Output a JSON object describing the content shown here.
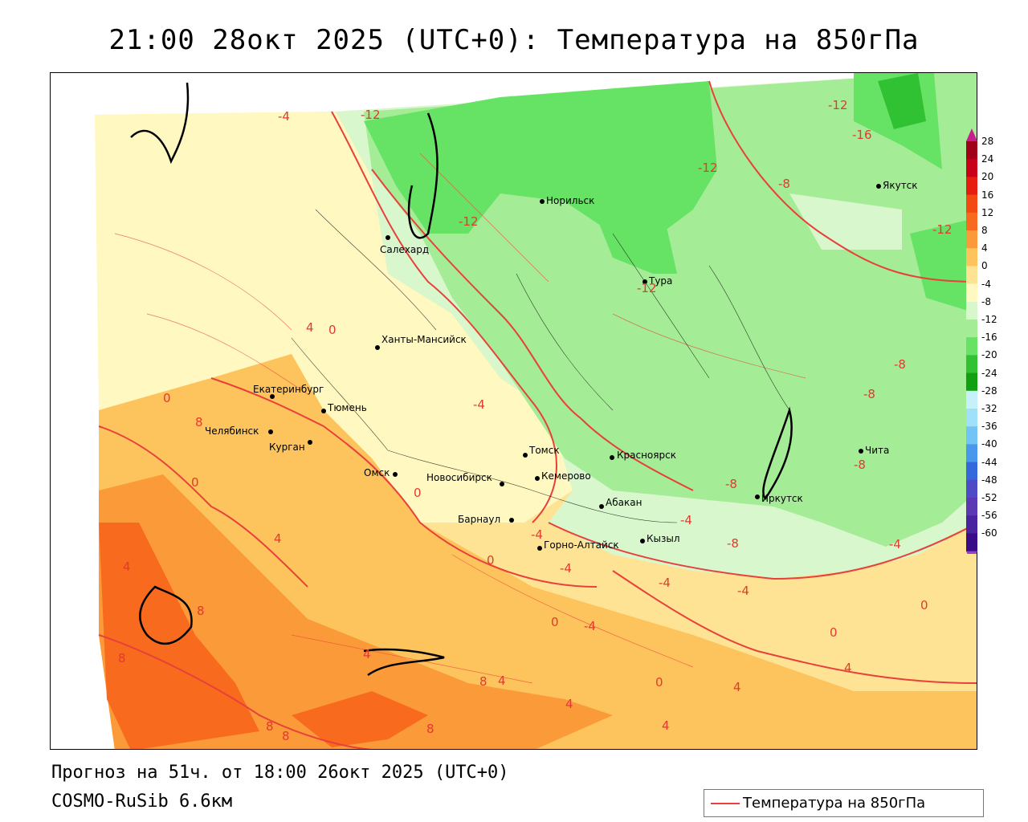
{
  "title": "21:00 28окт 2025 (UTC+0): Температура на 850гПа",
  "footer": {
    "forecast_line": "Прогноз на 51ч. от 18:00 26окт 2025 (UTC+0)",
    "model_line": "COSMO-RuSib 6.6км"
  },
  "legend": {
    "line_label": "Температура на 850гПа",
    "line_color": "#e8403a"
  },
  "colorbar": {
    "levels": [
      "28",
      "24",
      "20",
      "16",
      "12",
      "8",
      "4",
      "0",
      "-4",
      "-8",
      "-12",
      "-16",
      "-20",
      "-24",
      "-28",
      "-32",
      "-36",
      "-40",
      "-44",
      "-48",
      "-52",
      "-56",
      "-60"
    ],
    "colors": [
      "#a00018",
      "#c80018",
      "#e61e10",
      "#f24a10",
      "#f86a1e",
      "#fb9a38",
      "#fdc35c",
      "#ffe394",
      "#fff8c0",
      "#d8f7cc",
      "#a4ec96",
      "#66e264",
      "#30c232",
      "#10a012",
      "#c6f0fa",
      "#a0e0f8",
      "#72c4f4",
      "#4a98ec",
      "#3468dc",
      "#4e4ac8",
      "#5c38b4",
      "#4a24a0",
      "#380c88"
    ],
    "top_arrow_color": "#c8208a",
    "bottom_arrow_color": "#9a40c8"
  },
  "cities": [
    {
      "name": "Норильск"
    },
    {
      "name": "Якутск"
    },
    {
      "name": "Салехард"
    },
    {
      "name": "Тура"
    },
    {
      "name": "Ханты-Мансийск"
    },
    {
      "name": "Екатеринбург"
    },
    {
      "name": "Тюмень"
    },
    {
      "name": "Челябинск"
    },
    {
      "name": "Курган"
    },
    {
      "name": "Омск"
    },
    {
      "name": "Новосибирск"
    },
    {
      "name": "Томск"
    },
    {
      "name": "Кемерово"
    },
    {
      "name": "Красноярск"
    },
    {
      "name": "Барнаул"
    },
    {
      "name": "Абакан"
    },
    {
      "name": "Иркутск"
    },
    {
      "name": "Чита"
    },
    {
      "name": "Кызыл"
    },
    {
      "name": "Горно-Алтайск"
    }
  ],
  "isotherm_labels": [
    "-4",
    "-12",
    "-12",
    "-16",
    "-12",
    "-8",
    "-12",
    "-12",
    "-12",
    "0",
    "-4",
    "-8",
    "-8",
    "-8",
    "0",
    "0",
    "0",
    "-4",
    "0",
    "-4",
    "-4",
    "-4",
    "-4",
    "-8",
    "-4",
    "-8",
    "-4",
    "0",
    "0",
    "0",
    "4",
    "4",
    "4",
    "4",
    "4",
    "4",
    "4",
    "0",
    "4",
    "8",
    "8",
    "8",
    "8",
    "8",
    "8",
    "8",
    "4"
  ]
}
